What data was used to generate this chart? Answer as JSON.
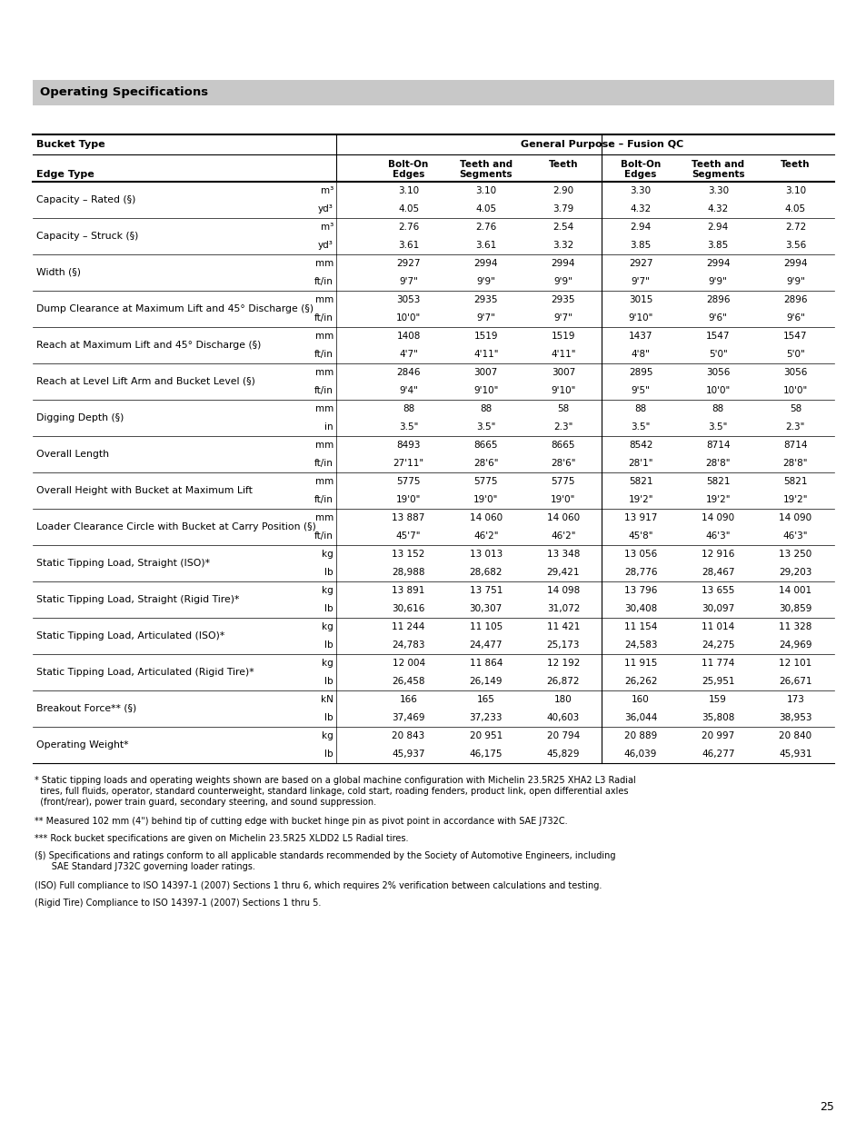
{
  "title": "Operating Specifications",
  "header_bg": "#c0c0c0",
  "page_number": "25",
  "bucket_type_header": "Bucket Type",
  "gp_header": "General Purpose – Fusion QC",
  "col_subheaders": [
    "Bolt-On\nEdges",
    "Teeth and\nSegments",
    "Teeth",
    "Bolt-On\nEdges",
    "Teeth and\nSegments",
    "Teeth"
  ],
  "edge_type_label": "Edge Type",
  "rows": [
    {
      "label": "Capacity – Rated (§)",
      "units": [
        "m³",
        "yd³"
      ],
      "values": [
        [
          "3.10",
          "3.10",
          "2.90",
          "3.30",
          "3.30",
          "3.10"
        ],
        [
          "4.05",
          "4.05",
          "3.79",
          "4.32",
          "4.32",
          "4.05"
        ]
      ]
    },
    {
      "label": "Capacity – Struck (§)",
      "units": [
        "m³",
        "yd³"
      ],
      "values": [
        [
          "2.76",
          "2.76",
          "2.54",
          "2.94",
          "2.94",
          "2.72"
        ],
        [
          "3.61",
          "3.61",
          "3.32",
          "3.85",
          "3.85",
          "3.56"
        ]
      ]
    },
    {
      "label": "Width (§)",
      "units": [
        "mm",
        "ft/in"
      ],
      "values": [
        [
          "2927",
          "2994",
          "2994",
          "2927",
          "2994",
          "2994"
        ],
        [
          "9'7\"",
          "9'9\"",
          "9'9\"",
          "9'7\"",
          "9'9\"",
          "9'9\""
        ]
      ]
    },
    {
      "label": "Dump Clearance at Maximum Lift and 45° Discharge (§)",
      "units": [
        "mm",
        "ft/in"
      ],
      "values": [
        [
          "3053",
          "2935",
          "2935",
          "3015",
          "2896",
          "2896"
        ],
        [
          "10'0\"",
          "9'7\"",
          "9'7\"",
          "9'10\"",
          "9'6\"",
          "9'6\""
        ]
      ]
    },
    {
      "label": "Reach at Maximum Lift and 45° Discharge (§)",
      "units": [
        "mm",
        "ft/in"
      ],
      "values": [
        [
          "1408",
          "1519",
          "1519",
          "1437",
          "1547",
          "1547"
        ],
        [
          "4'7\"",
          "4'11\"",
          "4'11\"",
          "4'8\"",
          "5'0\"",
          "5'0\""
        ]
      ]
    },
    {
      "label": "Reach at Level Lift Arm and Bucket Level (§)",
      "units": [
        "mm",
        "ft/in"
      ],
      "values": [
        [
          "2846",
          "3007",
          "3007",
          "2895",
          "3056",
          "3056"
        ],
        [
          "9'4\"",
          "9'10\"",
          "9'10\"",
          "9'5\"",
          "10'0\"",
          "10'0\""
        ]
      ]
    },
    {
      "label": "Digging Depth (§)",
      "units": [
        "mm",
        "in"
      ],
      "values": [
        [
          "88",
          "88",
          "58",
          "88",
          "88",
          "58"
        ],
        [
          "3.5\"",
          "3.5\"",
          "2.3\"",
          "3.5\"",
          "3.5\"",
          "2.3\""
        ]
      ]
    },
    {
      "label": "Overall Length",
      "units": [
        "mm",
        "ft/in"
      ],
      "values": [
        [
          "8493",
          "8665",
          "8665",
          "8542",
          "8714",
          "8714"
        ],
        [
          "27'11\"",
          "28'6\"",
          "28'6\"",
          "28'1\"",
          "28'8\"",
          "28'8\""
        ]
      ]
    },
    {
      "label": "Overall Height with Bucket at Maximum Lift",
      "units": [
        "mm",
        "ft/in"
      ],
      "values": [
        [
          "5775",
          "5775",
          "5775",
          "5821",
          "5821",
          "5821"
        ],
        [
          "19'0\"",
          "19'0\"",
          "19'0\"",
          "19'2\"",
          "19'2\"",
          "19'2\""
        ]
      ]
    },
    {
      "label": "Loader Clearance Circle with Bucket at Carry Position (§)",
      "units": [
        "mm",
        "ft/in"
      ],
      "values": [
        [
          "13 887",
          "14 060",
          "14 060",
          "13 917",
          "14 090",
          "14 090"
        ],
        [
          "45'7\"",
          "46'2\"",
          "46'2\"",
          "45'8\"",
          "46'3\"",
          "46'3\""
        ]
      ]
    },
    {
      "label": "Static Tipping Load, Straight (ISO)*",
      "units": [
        "kg",
        "lb"
      ],
      "values": [
        [
          "13 152",
          "13 013",
          "13 348",
          "13 056",
          "12 916",
          "13 250"
        ],
        [
          "28,988",
          "28,682",
          "29,421",
          "28,776",
          "28,467",
          "29,203"
        ]
      ]
    },
    {
      "label": "Static Tipping Load, Straight (Rigid Tire)*",
      "units": [
        "kg",
        "lb"
      ],
      "values": [
        [
          "13 891",
          "13 751",
          "14 098",
          "13 796",
          "13 655",
          "14 001"
        ],
        [
          "30,616",
          "30,307",
          "31,072",
          "30,408",
          "30,097",
          "30,859"
        ]
      ]
    },
    {
      "label": "Static Tipping Load, Articulated (ISO)*",
      "units": [
        "kg",
        "lb"
      ],
      "values": [
        [
          "11 244",
          "11 105",
          "11 421",
          "11 154",
          "11 014",
          "11 328"
        ],
        [
          "24,783",
          "24,477",
          "25,173",
          "24,583",
          "24,275",
          "24,969"
        ]
      ]
    },
    {
      "label": "Static Tipping Load, Articulated (Rigid Tire)*",
      "units": [
        "kg",
        "lb"
      ],
      "values": [
        [
          "12 004",
          "11 864",
          "12 192",
          "11 915",
          "11 774",
          "12 101"
        ],
        [
          "26,458",
          "26,149",
          "26,872",
          "26,262",
          "25,951",
          "26,671"
        ]
      ]
    },
    {
      "label": "Breakout Force** (§)",
      "units": [
        "kN",
        "lb"
      ],
      "values": [
        [
          "166",
          "165",
          "180",
          "160",
          "159",
          "173"
        ],
        [
          "37,469",
          "37,233",
          "40,603",
          "36,044",
          "35,808",
          "38,953"
        ]
      ]
    },
    {
      "label": "Operating Weight*",
      "units": [
        "kg",
        "lb"
      ],
      "values": [
        [
          "20 843",
          "20 951",
          "20 794",
          "20 889",
          "20 997",
          "20 840"
        ],
        [
          "45,937",
          "46,175",
          "45,829",
          "46,039",
          "46,277",
          "45,931"
        ]
      ]
    }
  ],
  "footnotes": [
    "* Static tipping loads and operating weights shown are based on a global machine configuration with Michelin 23.5R25 XHA2 L3 Radial\n  tires, full fluids, operator, standard counterweight, standard linkage, cold start, roading fenders, product link, open differential axles\n  (front/rear), power train guard, secondary steering, and sound suppression.",
    "** Measured 102 mm (4\") behind tip of cutting edge with bucket hinge pin as pivot point in accordance with SAE J732C.",
    "*** Rock bucket specifications are given on Michelin 23.5R25 XLDD2 L5 Radial tires.",
    "(§) Specifications and ratings conform to all applicable standards recommended by the Society of Automotive Engineers, including\n      SAE Standard J732C governing loader ratings.",
    "(ISO) Full compliance to ISO 14397-1 (2007) Sections 1 thru 6, which requires 2% verification between calculations and testing.",
    "(Rigid Tire) Compliance to ISO 14397-1 (2007) Sections 1 thru 5."
  ],
  "footnote_line_heights": [
    13,
    13,
    13,
    13,
    13,
    13,
    13,
    13,
    13
  ],
  "footnote_gaps": [
    8,
    6,
    6,
    8,
    6,
    6
  ]
}
